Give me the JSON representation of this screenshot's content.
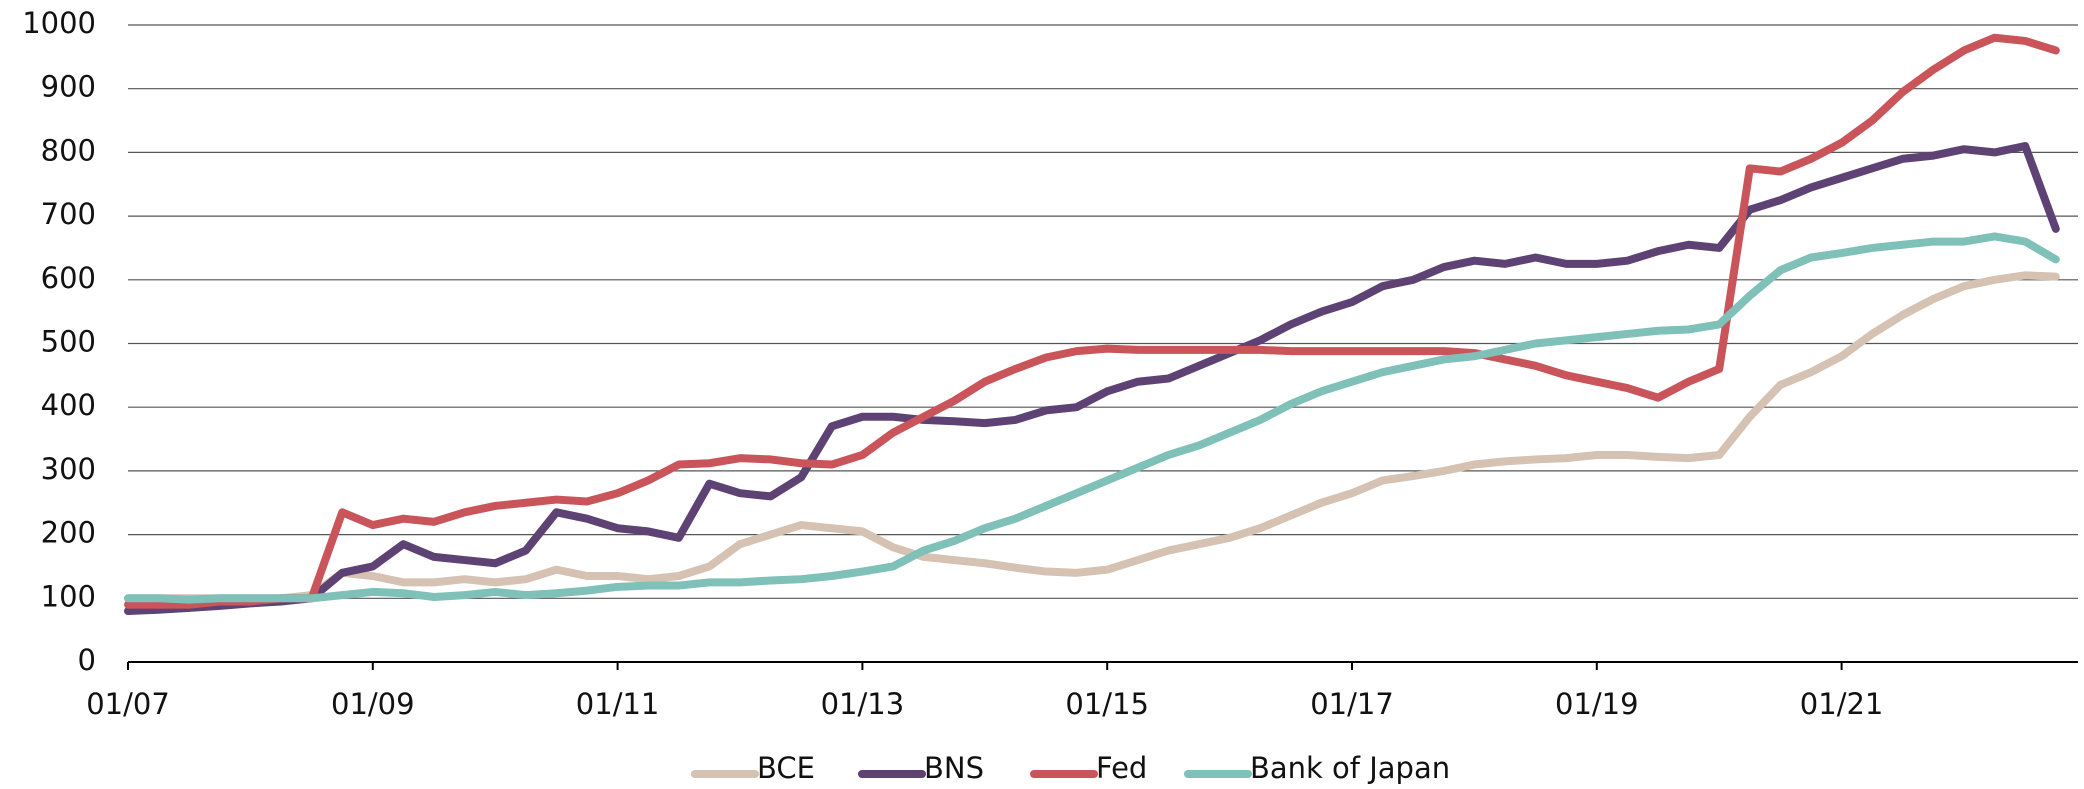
{
  "chart_data": {
    "type": "line",
    "categories": [
      "01/07",
      null,
      null,
      null,
      null,
      null,
      null,
      null,
      "01/09",
      null,
      null,
      null,
      null,
      null,
      null,
      null,
      "01/11",
      null,
      null,
      null,
      null,
      null,
      null,
      null,
      "01/13",
      null,
      null,
      null,
      null,
      null,
      null,
      null,
      "01/15",
      null,
      null,
      null,
      null,
      null,
      null,
      null,
      "01/17",
      null,
      null,
      null,
      null,
      null,
      null,
      null,
      "01/19",
      null,
      null,
      null,
      null,
      null,
      null,
      null,
      "01/21",
      null,
      null,
      null,
      null,
      null,
      null,
      null
    ],
    "series": [
      {
        "name": "BCE",
        "color": "#d5c2b2",
        "values": [
          100,
          100,
          100,
          100,
          100,
          100,
          105,
          140,
          135,
          125,
          125,
          130,
          125,
          130,
          145,
          135,
          135,
          130,
          135,
          150,
          185,
          200,
          215,
          210,
          205,
          180,
          165,
          160,
          155,
          148,
          142,
          140,
          145,
          160,
          175,
          185,
          195,
          210,
          230,
          250,
          265,
          285,
          292,
          300,
          310,
          315,
          318,
          320,
          325,
          325,
          322,
          320,
          325,
          385,
          435,
          455,
          480,
          515,
          545,
          570,
          590,
          600,
          607,
          605
        ]
      },
      {
        "name": "BNS",
        "color": "#5e4274",
        "values": [
          80,
          82,
          85,
          88,
          92,
          95,
          100,
          140,
          150,
          185,
          165,
          160,
          155,
          175,
          235,
          225,
          210,
          205,
          195,
          280,
          265,
          260,
          290,
          370,
          385,
          385,
          380,
          378,
          375,
          380,
          395,
          400,
          425,
          440,
          445,
          465,
          485,
          505,
          530,
          550,
          565,
          590,
          600,
          620,
          630,
          625,
          635,
          625,
          625,
          630,
          645,
          655,
          650,
          710,
          725,
          745,
          760,
          775,
          790,
          795,
          805,
          800,
          810,
          680
        ]
      },
      {
        "name": "Fed",
        "color": "#c9555b",
        "values": [
          90,
          90,
          90,
          95,
          95,
          100,
          100,
          235,
          215,
          225,
          220,
          235,
          245,
          250,
          255,
          252,
          265,
          285,
          310,
          312,
          320,
          318,
          312,
          310,
          325,
          360,
          385,
          410,
          440,
          460,
          478,
          488,
          492,
          490,
          490,
          490,
          490,
          490,
          488,
          488,
          488,
          488,
          488,
          488,
          485,
          475,
          465,
          450,
          440,
          430,
          415,
          440,
          460,
          775,
          770,
          790,
          815,
          850,
          895,
          930,
          960,
          980,
          975,
          960
        ]
      },
      {
        "name": "Bank of Japan",
        "color": "#7fc0b8",
        "values": [
          100,
          100,
          98,
          100,
          100,
          100,
          100,
          105,
          110,
          108,
          102,
          105,
          110,
          105,
          108,
          112,
          118,
          120,
          120,
          125,
          125,
          128,
          130,
          135,
          142,
          150,
          175,
          190,
          210,
          225,
          245,
          265,
          285,
          305,
          325,
          340,
          360,
          380,
          405,
          425,
          440,
          455,
          465,
          475,
          480,
          490,
          500,
          505,
          510,
          515,
          520,
          522,
          530,
          575,
          615,
          635,
          642,
          650,
          655,
          660,
          660,
          668,
          660,
          632
        ]
      }
    ],
    "ylim": [
      0,
      1000
    ],
    "yticks": [
      0,
      100,
      200,
      300,
      400,
      500,
      600,
      700,
      800,
      900,
      1000
    ],
    "grid": true
  }
}
